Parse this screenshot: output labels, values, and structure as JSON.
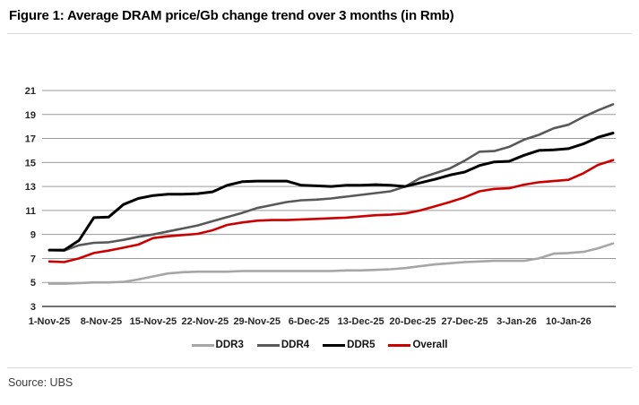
{
  "title": "Figure 1: Average DRAM price/Gb change trend over 3 months (in Rmb)",
  "source": "Source: UBS",
  "chart_data": {
    "type": "line",
    "title": "Average DRAM price/Gb change trend over 3 months (in Rmb)",
    "y_unit": "Rmb per Gb",
    "x_start_date": "1-Nov-25",
    "x_domain_days": [
      0,
      76
    ],
    "sample_interval_days": 2,
    "x_tick_labels": [
      "1-Nov-25",
      "8-Nov-25",
      "15-Nov-25",
      "22-Nov-25",
      "29-Nov-25",
      "6-Dec-25",
      "13-Dec-25",
      "20-Dec-25",
      "27-Dec-25",
      "3-Jan-26",
      "10-Jan-26"
    ],
    "x_tick_days": [
      0,
      7,
      14,
      21,
      28,
      35,
      42,
      49,
      56,
      63,
      70
    ],
    "y_ticks": [
      3,
      5,
      7,
      9,
      11,
      13,
      15,
      17,
      19,
      21
    ],
    "ylim": [
      3,
      22
    ],
    "grid": "horizontal",
    "grid_color": "#9a9a9a",
    "axis_color": "#404040",
    "legend_position": "bottom-center",
    "series": [
      {
        "name": "DDR3",
        "color": "#a6a6a6",
        "values": [
          4.9,
          4.9,
          4.95,
          5.0,
          5.0,
          5.05,
          5.25,
          5.5,
          5.75,
          5.85,
          5.9,
          5.9,
          5.9,
          5.95,
          5.95,
          5.95,
          5.95,
          5.95,
          5.95,
          5.95,
          6.0,
          6.0,
          6.05,
          6.1,
          6.2,
          6.35,
          6.5,
          6.6,
          6.7,
          6.75,
          6.8,
          6.8,
          6.8,
          7.0,
          7.4,
          7.45,
          7.55,
          7.85,
          8.25
        ]
      },
      {
        "name": "DDR4",
        "color": "#595959",
        "values": [
          7.7,
          7.65,
          8.1,
          8.3,
          8.35,
          8.55,
          8.8,
          9.0,
          9.25,
          9.5,
          9.75,
          10.1,
          10.45,
          10.8,
          11.2,
          11.45,
          11.7,
          11.85,
          11.9,
          12.0,
          12.15,
          12.3,
          12.45,
          12.6,
          13.0,
          13.7,
          14.1,
          14.5,
          15.15,
          15.9,
          15.95,
          16.3,
          16.9,
          17.3,
          17.85,
          18.15,
          18.8,
          19.35,
          19.85
        ]
      },
      {
        "name": "DDR5",
        "color": "#000000",
        "values": [
          7.7,
          7.7,
          8.5,
          10.4,
          10.45,
          11.5,
          12.0,
          12.25,
          12.35,
          12.35,
          12.4,
          12.55,
          13.1,
          13.4,
          13.45,
          13.45,
          13.45,
          13.1,
          13.05,
          13.0,
          13.1,
          13.1,
          13.15,
          13.1,
          13.0,
          13.3,
          13.6,
          13.95,
          14.2,
          14.75,
          15.05,
          15.1,
          15.6,
          16.0,
          16.05,
          16.15,
          16.55,
          17.1,
          17.45
        ]
      },
      {
        "name": "Overall",
        "color": "#cc0000",
        "values": [
          6.75,
          6.7,
          7.0,
          7.45,
          7.65,
          7.9,
          8.15,
          8.7,
          8.85,
          8.95,
          9.05,
          9.35,
          9.8,
          10.0,
          10.15,
          10.2,
          10.2,
          10.25,
          10.3,
          10.35,
          10.4,
          10.5,
          10.6,
          10.65,
          10.75,
          11.0,
          11.35,
          11.7,
          12.1,
          12.6,
          12.8,
          12.85,
          13.15,
          13.35,
          13.45,
          13.55,
          14.1,
          14.8,
          15.2
        ]
      }
    ]
  }
}
